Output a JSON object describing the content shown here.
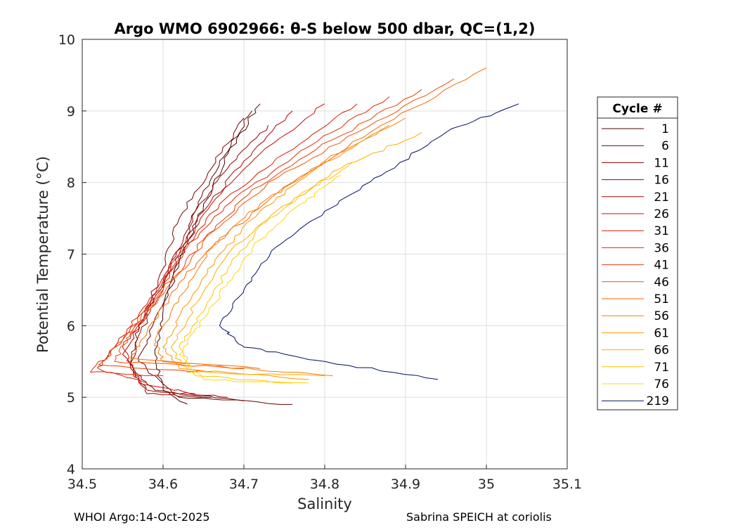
{
  "chart_data": {
    "type": "line",
    "title": "Argo WMO 6902966: θ-S below 500 dbar,  QC=(1,2)",
    "xlabel": "Salinity",
    "ylabel": "Potential Temperature (°C)",
    "xlim": [
      34.5,
      35.1
    ],
    "ylim": [
      4,
      10
    ],
    "xticks": [
      "34.5",
      "34.6",
      "34.7",
      "34.8",
      "34.9",
      "35",
      "35.1"
    ],
    "yticks": [
      "4",
      "5",
      "6",
      "7",
      "8",
      "9",
      "10"
    ],
    "grid": true,
    "legend": {
      "title": "Cycle #",
      "placement": "right",
      "entries": [
        {
          "label": "1",
          "color": "#4d0000"
        },
        {
          "label": "6",
          "color": "#640000"
        },
        {
          "label": "11",
          "color": "#7c0000"
        },
        {
          "label": "16",
          "color": "#940000"
        },
        {
          "label": "21",
          "color": "#ac0000"
        },
        {
          "label": "26",
          "color": "#c40a00"
        },
        {
          "label": "31",
          "color": "#d41a00"
        },
        {
          "label": "36",
          "color": "#e02a00"
        },
        {
          "label": "41",
          "color": "#ea3c00"
        },
        {
          "label": "46",
          "color": "#f25000"
        },
        {
          "label": "51",
          "color": "#f76600"
        },
        {
          "label": "56",
          "color": "#fb7c00"
        },
        {
          "label": "61",
          "color": "#fd9400"
        },
        {
          "label": "66",
          "color": "#ffac00"
        },
        {
          "label": "71",
          "color": "#ffc400"
        },
        {
          "label": "76",
          "color": "#ffd900"
        },
        {
          "label": "219",
          "color": "#000d66"
        }
      ]
    },
    "series": [
      {
        "name": "1",
        "color": "#4d0000",
        "s": [
          34.72,
          34.68,
          34.65,
          34.62,
          34.6,
          34.59,
          34.6,
          34.63
        ],
        "t": [
          9.1,
          8.4,
          7.7,
          6.9,
          6.2,
          5.6,
          5.1,
          4.9
        ]
      },
      {
        "name": "6",
        "color": "#640000",
        "s": [
          34.71,
          34.67,
          34.64,
          34.62,
          34.59,
          34.57,
          34.62,
          34.76
        ],
        "t": [
          9.0,
          8.3,
          7.6,
          6.9,
          6.1,
          5.5,
          5.0,
          4.9
        ]
      },
      {
        "name": "11",
        "color": "#7c0000",
        "s": [
          34.7,
          34.66,
          34.62,
          34.6,
          34.57,
          34.56,
          34.59,
          34.7
        ],
        "t": [
          8.9,
          8.2,
          7.5,
          6.8,
          6.0,
          5.4,
          5.1,
          4.95
        ]
      },
      {
        "name": "16",
        "color": "#940000",
        "s": [
          34.73,
          34.68,
          34.64,
          34.61,
          34.58,
          34.56,
          34.58,
          34.66
        ],
        "t": [
          8.8,
          8.2,
          7.6,
          6.9,
          6.1,
          5.5,
          5.05,
          5.0
        ]
      },
      {
        "name": "21",
        "color": "#ac0000",
        "s": [
          34.76,
          34.7,
          34.65,
          34.61,
          34.58,
          34.55,
          34.58,
          34.68
        ],
        "t": [
          9.0,
          8.3,
          7.6,
          6.9,
          6.2,
          5.6,
          5.1,
          5.0
        ]
      },
      {
        "name": "26",
        "color": "#c40a00",
        "s": [
          34.8,
          34.72,
          34.66,
          34.62,
          34.59,
          34.55,
          34.57,
          34.64
        ],
        "t": [
          9.1,
          8.4,
          7.7,
          7.0,
          6.3,
          5.7,
          5.2,
          5.05
        ]
      },
      {
        "name": "31",
        "color": "#d41a00",
        "s": [
          34.84,
          34.75,
          34.67,
          34.62,
          34.58,
          34.54,
          34.52,
          34.58
        ],
        "t": [
          9.1,
          8.4,
          7.7,
          7.0,
          6.3,
          5.7,
          5.4,
          5.2
        ]
      },
      {
        "name": "36",
        "color": "#e02a00",
        "s": [
          34.88,
          34.78,
          34.69,
          34.63,
          34.59,
          34.55,
          34.51,
          34.6
        ],
        "t": [
          9.2,
          8.5,
          7.8,
          7.1,
          6.4,
          5.8,
          5.35,
          5.3
        ]
      },
      {
        "name": "41",
        "color": "#ea3c00",
        "s": [
          34.92,
          34.81,
          34.71,
          34.65,
          34.6,
          34.55,
          34.52,
          34.66
        ],
        "t": [
          9.3,
          8.6,
          7.9,
          7.2,
          6.5,
          5.8,
          5.45,
          5.35
        ]
      },
      {
        "name": "46",
        "color": "#f25000",
        "s": [
          34.96,
          34.84,
          34.73,
          34.66,
          34.61,
          34.56,
          34.54,
          34.7
        ],
        "t": [
          9.45,
          8.7,
          8.0,
          7.3,
          6.6,
          5.9,
          5.5,
          5.4
        ]
      },
      {
        "name": "51",
        "color": "#f76600",
        "s": [
          35.0,
          34.87,
          34.76,
          34.68,
          34.62,
          34.58,
          34.56,
          34.72
        ],
        "t": [
          9.6,
          8.8,
          8.0,
          7.3,
          6.6,
          5.9,
          5.55,
          5.4
        ]
      },
      {
        "name": "56",
        "color": "#fb7c00",
        "s": [
          34.9,
          34.8,
          34.72,
          34.66,
          34.62,
          34.59,
          34.6,
          34.81
        ],
        "t": [
          8.9,
          8.3,
          7.7,
          7.1,
          6.4,
          5.8,
          5.5,
          5.3
        ]
      },
      {
        "name": "61",
        "color": "#fd9400",
        "s": [
          34.88,
          34.79,
          34.72,
          34.67,
          34.63,
          34.6,
          34.62,
          34.78
        ],
        "t": [
          8.8,
          8.2,
          7.6,
          7.0,
          6.3,
          5.7,
          5.4,
          5.25
        ]
      },
      {
        "name": "66",
        "color": "#ffac00",
        "s": [
          34.92,
          34.82,
          34.74,
          34.68,
          34.64,
          34.61,
          34.63,
          34.8
        ],
        "t": [
          8.7,
          8.2,
          7.6,
          7.0,
          6.3,
          5.7,
          5.35,
          5.3
        ]
      },
      {
        "name": "71",
        "color": "#ffc400",
        "s": [
          34.84,
          34.78,
          34.72,
          34.68,
          34.65,
          34.62,
          34.64,
          34.76
        ],
        "t": [
          8.3,
          7.9,
          7.4,
          6.8,
          6.2,
          5.7,
          5.3,
          5.2
        ]
      },
      {
        "name": "76",
        "color": "#ffd900",
        "s": [
          34.82,
          34.77,
          34.72,
          34.68,
          34.65,
          34.62,
          34.65,
          34.78
        ],
        "t": [
          8.1,
          7.7,
          7.2,
          6.6,
          6.1,
          5.6,
          5.25,
          5.2
        ]
      },
      {
        "name": "219",
        "color": "#000d66",
        "s": [
          35.04,
          34.95,
          34.87,
          34.8,
          34.74,
          34.7,
          34.67,
          34.7,
          34.8,
          34.94
        ],
        "t": [
          9.1,
          8.7,
          8.1,
          7.6,
          7.1,
          6.5,
          6.0,
          5.7,
          5.5,
          5.25
        ]
      }
    ]
  },
  "footer": {
    "left": "WHOI Argo:14-Oct-2025",
    "right": "Sabrina SPEICH at coriolis"
  }
}
